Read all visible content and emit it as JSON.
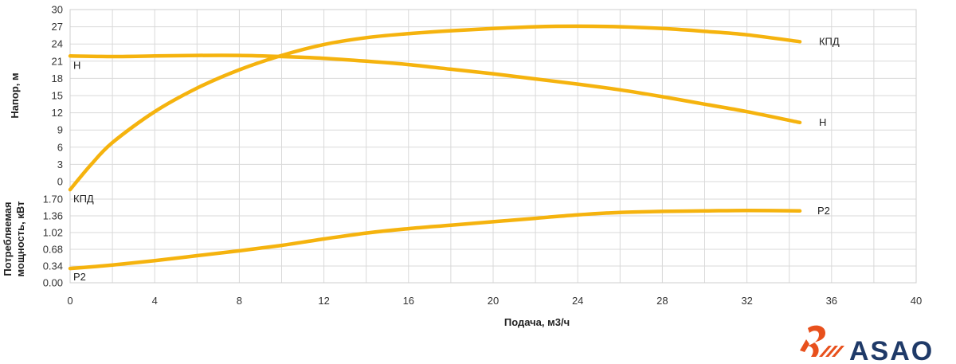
{
  "chart_data": {
    "type": "line",
    "xlabel": "Подача, м3/ч",
    "x_ticks": [
      0,
      4,
      8,
      12,
      16,
      20,
      24,
      28,
      32,
      36,
      40
    ],
    "xlim": [
      0,
      40
    ],
    "grid": true,
    "top_panel": {
      "ylabel": "Напор, м",
      "ylim": [
        0,
        30
      ],
      "y_ticks": [
        "0",
        "3",
        "6",
        "9",
        "12",
        "15",
        "18",
        "21",
        "24",
        "27",
        "30"
      ],
      "series": [
        {
          "name": "H",
          "label": "H",
          "color": "#F5B30E",
          "x": [
            0,
            2,
            4,
            6,
            8,
            10,
            12,
            14,
            16,
            18,
            20,
            22,
            24,
            26,
            28,
            30,
            32,
            34.5
          ],
          "y": [
            21.9,
            21.8,
            21.9,
            22.0,
            22.0,
            21.8,
            21.5,
            21.0,
            20.4,
            19.6,
            18.8,
            17.9,
            17.0,
            16.0,
            14.8,
            13.5,
            12.2,
            10.3
          ]
        },
        {
          "name": "КПД",
          "label": "КПД",
          "color": "#F5B30E",
          "x": [
            0,
            1,
            2,
            4,
            6,
            8,
            10,
            12,
            14,
            16,
            18,
            20,
            22,
            24,
            26,
            28,
            30,
            32,
            34.5
          ],
          "y": [
            -1.4,
            3.0,
            6.8,
            12.2,
            16.3,
            19.5,
            22.0,
            23.9,
            25.1,
            25.8,
            26.3,
            26.7,
            27.0,
            27.1,
            27.0,
            26.7,
            26.2,
            25.6,
            24.4
          ]
        }
      ]
    },
    "bottom_panel": {
      "ylabel": "Потребляемая мощность, кВт",
      "ylim": [
        0,
        1.7
      ],
      "y_ticks": [
        "0.00",
        "0.34",
        "0.68",
        "1.02",
        "1.36",
        "1.70"
      ],
      "series": [
        {
          "name": "P2",
          "label": "P2",
          "color": "#F5B30E",
          "x": [
            0,
            2,
            4,
            6,
            8,
            10,
            12,
            14,
            16,
            18,
            20,
            22,
            24,
            26,
            28,
            30,
            32,
            34.5
          ],
          "y": [
            0.29,
            0.36,
            0.45,
            0.55,
            0.65,
            0.76,
            0.89,
            1.01,
            1.1,
            1.17,
            1.24,
            1.31,
            1.38,
            1.43,
            1.45,
            1.46,
            1.47,
            1.46
          ]
        }
      ]
    }
  },
  "logo": {
    "text": "ASAO",
    "colors": {
      "mark": "#E8501C",
      "text": "#1F3A68"
    }
  }
}
